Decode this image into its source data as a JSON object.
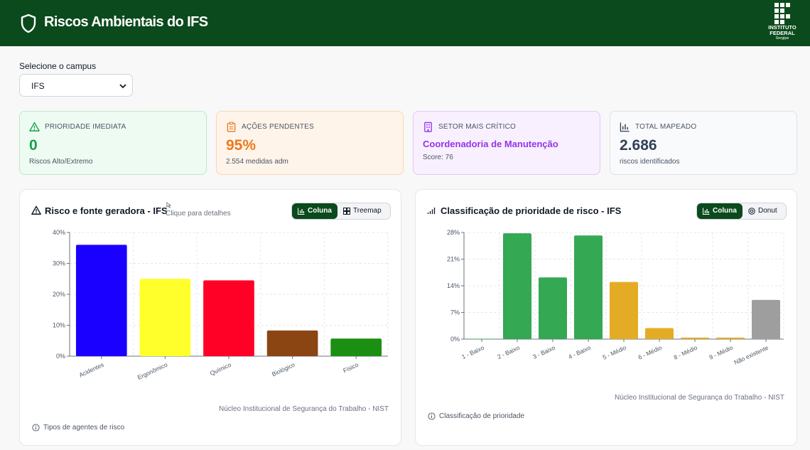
{
  "header": {
    "title": "Riscos Ambientais do IFS",
    "logo": {
      "line1": "INSTITUTO",
      "line2": "FEDERAL",
      "line3": "Sergipe"
    }
  },
  "campus": {
    "label": "Selecione o campus",
    "selected": "IFS"
  },
  "cards": {
    "prioridade": {
      "label": "PRIORIDADE IMEDIATA",
      "value": "0",
      "sub": "Riscos Alto/Extremo",
      "color": "#16a34a"
    },
    "acoes": {
      "label": "AÇÕES PENDENTES",
      "value": "95%",
      "sub": "2.554 medidas adm",
      "color": "#ea7a1e"
    },
    "setor": {
      "label": "SETOR MAIS CRÍTICO",
      "value": "Coordenadoria de Manutenção",
      "sub": "Score: 76",
      "color": "#9333ea"
    },
    "total": {
      "label": "TOTAL MAPEADO",
      "value": "2.686",
      "sub": "riscos identificados",
      "color": "#334155"
    }
  },
  "panel1": {
    "title": "Risco e fonte geradora - IFS",
    "hint": "Clique para detalhes",
    "toggle": {
      "column": "Coluna",
      "treemap": "Treemap"
    },
    "source": "Núcleo Institucional de Segurança do Trabalho - NIST",
    "footer": "Tipos de agentes de risco"
  },
  "panel2": {
    "title": "Classificação de prioridade de risco - IFS",
    "toggle": {
      "column": "Coluna",
      "donut": "Donut"
    },
    "source": "Núcleo Institucional de Segurança do Trabalho - NIST",
    "footer": "Classificação de prioridade"
  },
  "chart_data": [
    {
      "type": "bar",
      "title": "Risco e fonte geradora - IFS",
      "categories": [
        "Acidentes",
        "Ergonômico",
        "Químico",
        "Biológico",
        "Físico"
      ],
      "values": [
        36,
        25,
        24.5,
        8.3,
        5.7
      ],
      "colors": [
        "#1a00ff",
        "#ffff2b",
        "#ff0026",
        "#8b4513",
        "#1b8f12"
      ],
      "yticks": [
        "0%",
        "10%",
        "20%",
        "30%",
        "40%"
      ],
      "ylim": [
        0,
        40
      ],
      "xlabel": "",
      "ylabel": "",
      "grid": true
    },
    {
      "type": "bar",
      "title": "Classificação de prioridade de risco - IFS",
      "categories": [
        "1 - Baixo",
        "2 - Baixo",
        "3 - Baixo",
        "4 - Baixo",
        "5 - Médio",
        "6 - Médio",
        "8 - Médio",
        "9 - Médio",
        "Não existente"
      ],
      "values": [
        0.1,
        27.8,
        16.2,
        27.2,
        15,
        2.9,
        0.4,
        0.4,
        10.3
      ],
      "colors": [
        "#34a853",
        "#34a853",
        "#34a853",
        "#34a853",
        "#e4ac24",
        "#e4ac24",
        "#e4ac24",
        "#e4ac24",
        "#9e9e9e"
      ],
      "yticks": [
        "0%",
        "7%",
        "14%",
        "21%",
        "28%"
      ],
      "ylim": [
        0,
        28
      ],
      "xlabel": "",
      "ylabel": "",
      "grid": true
    }
  ]
}
